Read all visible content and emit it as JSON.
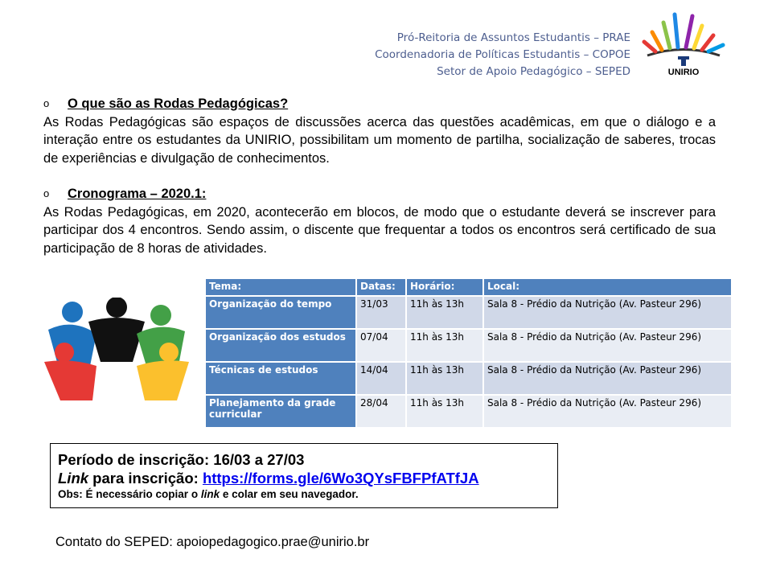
{
  "header": {
    "lines": [
      "Pró-Reitoria de Assuntos Estudantis – PRAE",
      "Coordenadoria de Políticas Estudantis – COPOE",
      "Setor de Apoio  Pedagógico – SEPED"
    ],
    "logo_text": "UNIRIO"
  },
  "section1": {
    "bullet": "o",
    "title": "O que são as Rodas Pedagógicas?",
    "text": "As Rodas Pedagógicas são espaços de discussões acerca das questões acadêmicas, em que o diálogo e a interação entre os estudantes da UNIRIO, possibilitam um momento de partilha, socialização de saberes, trocas de experiências e divulgação de conhecimentos."
  },
  "section2": {
    "bullet": "o",
    "title": "Cronograma – 2020.1:",
    "text": "As Rodas Pedagógicas, em 2020, acontecerão em blocos, de modo que o estudante deverá se inscrever para participar dos 4 encontros. Sendo assim, o discente que frequentar a todos os encontros será certificado de sua participação de 8 horas de atividades."
  },
  "table": {
    "headers": [
      "Tema:",
      "Datas:",
      "Horário:",
      "Local:"
    ],
    "rows": [
      [
        "Organização do tempo",
        "31/03",
        "11h às 13h",
        "Sala 8 - Prédio da Nutrição (Av. Pasteur 296)"
      ],
      [
        "Organização dos estudos",
        "07/04",
        "11h às 13h",
        "Sala 8 - Prédio da Nutrição (Av. Pasteur 296)"
      ],
      [
        "Técnicas de estudos",
        "14/04",
        "11h às 13h",
        "Sala 8 - Prédio da Nutrição (Av. Pasteur 296)"
      ],
      [
        "Planejamento da grade curricular",
        "28/04",
        "11h às 13h",
        "Sala 8 - Prédio da Nutrição (Av. Pasteur 296)"
      ]
    ]
  },
  "registration": {
    "period_label": "Período de inscrição:",
    "period_value": "16/03 a 27/03",
    "link_label_italic": "Link",
    "link_label_rest": " para inscrição:",
    "link_url": "https://forms.gle/6Wo3QYsFBFPfATfJA",
    "obs_before": "Obs: É necessário copiar o ",
    "obs_italic": "link",
    "obs_after": " e colar em seu navegador."
  },
  "contact": "Contato do SEPED: apoiopedagogico.prae@unirio.br",
  "colors": {
    "table_header": "#4f81bd",
    "header_text": "#4d5e8f",
    "link": "#0000ee"
  }
}
